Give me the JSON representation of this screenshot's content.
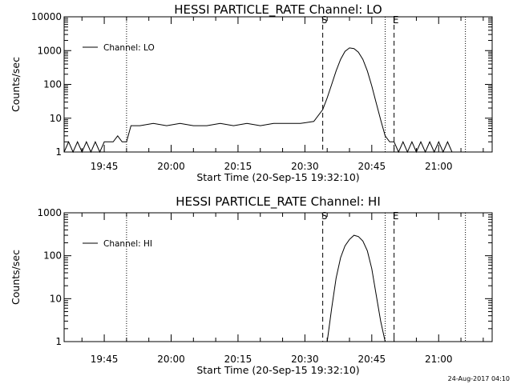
{
  "footer": {
    "timestamp": "24-Aug-2017 04:10"
  },
  "chart_data": [
    {
      "type": "line",
      "title": "HESSI PARTICLE_RATE Channel: LO",
      "xlabel": "Start Time (20-Sep-15 19:32:10)",
      "ylabel": "Counts/sec",
      "yscale": "log",
      "xlim": [
        "19:36",
        "21:12"
      ],
      "ylim": [
        1,
        10000
      ],
      "x_ticks": [
        "19:45",
        "20:00",
        "20:15",
        "20:30",
        "20:45",
        "21:00"
      ],
      "y_ticks": [
        "1",
        "10",
        "100",
        "1000",
        "10000"
      ],
      "legend": {
        "entries": [
          "Channel: LO"
        ],
        "position": "top-left"
      },
      "markers": [
        {
          "label": "S",
          "time": "20:34",
          "style": "dashed"
        },
        {
          "label": "E",
          "time": "20:50",
          "style": "dashed"
        }
      ],
      "dotted_lines": [
        "19:50",
        "20:48",
        "21:06"
      ],
      "series": [
        {
          "name": "Channel: LO",
          "x": [
            "19:36",
            "19:37",
            "19:38",
            "19:39",
            "19:40",
            "19:41",
            "19:42",
            "19:43",
            "19:44",
            "19:45",
            "19:46",
            "19:47",
            "19:48",
            "19:49",
            "19:50",
            "19:51",
            "19:53",
            "19:56",
            "19:59",
            "20:02",
            "20:05",
            "20:08",
            "20:11",
            "20:14",
            "20:17",
            "20:20",
            "20:23",
            "20:26",
            "20:29",
            "20:32",
            "20:34",
            "20:35",
            "20:36",
            "20:37",
            "20:38",
            "20:39",
            "20:40",
            "20:41",
            "20:42",
            "20:43",
            "20:44",
            "20:45",
            "20:46",
            "20:47",
            "20:48",
            "20:49",
            "20:50",
            "20:51",
            "20:52",
            "20:53",
            "20:54",
            "20:55",
            "20:56",
            "20:57",
            "20:58",
            "20:59",
            "21:00",
            "21:01",
            "21:02",
            "21:03"
          ],
          "y": [
            1,
            2,
            1,
            2,
            1,
            2,
            1,
            2,
            1,
            2,
            2,
            2,
            3,
            2,
            2,
            6,
            6,
            7,
            6,
            7,
            6,
            6,
            7,
            6,
            7,
            6,
            7,
            7,
            7,
            8,
            18,
            40,
            100,
            250,
            550,
            950,
            1200,
            1150,
            900,
            550,
            250,
            90,
            28,
            9,
            3,
            2,
            2,
            1,
            2,
            1,
            2,
            1,
            2,
            1,
            2,
            1,
            2,
            1,
            2,
            1
          ]
        }
      ]
    },
    {
      "type": "line",
      "title": "HESSI PARTICLE_RATE Channel: HI",
      "xlabel": "Start Time (20-Sep-15 19:32:10)",
      "ylabel": "Counts/sec",
      "yscale": "log",
      "xlim": [
        "19:36",
        "21:12"
      ],
      "ylim": [
        1,
        1000
      ],
      "x_ticks": [
        "19:45",
        "20:00",
        "20:15",
        "20:30",
        "20:45",
        "21:00"
      ],
      "y_ticks": [
        "1",
        "10",
        "100",
        "1000"
      ],
      "legend": {
        "entries": [
          "Channel: HI"
        ],
        "position": "top-left"
      },
      "markers": [
        {
          "label": "S",
          "time": "20:34",
          "style": "dashed"
        },
        {
          "label": "E",
          "time": "20:50",
          "style": "dashed"
        }
      ],
      "dotted_lines": [
        "19:50",
        "20:48",
        "21:06"
      ],
      "series": [
        {
          "name": "Channel: HI",
          "x": [
            "20:35",
            "20:36",
            "20:37",
            "20:38",
            "20:39",
            "20:40",
            "20:41",
            "20:42",
            "20:43",
            "20:44",
            "20:45",
            "20:46",
            "20:47",
            "20:48"
          ],
          "y": [
            1,
            6,
            30,
            90,
            170,
            240,
            300,
            280,
            220,
            130,
            50,
            12,
            3,
            1
          ]
        }
      ]
    }
  ]
}
